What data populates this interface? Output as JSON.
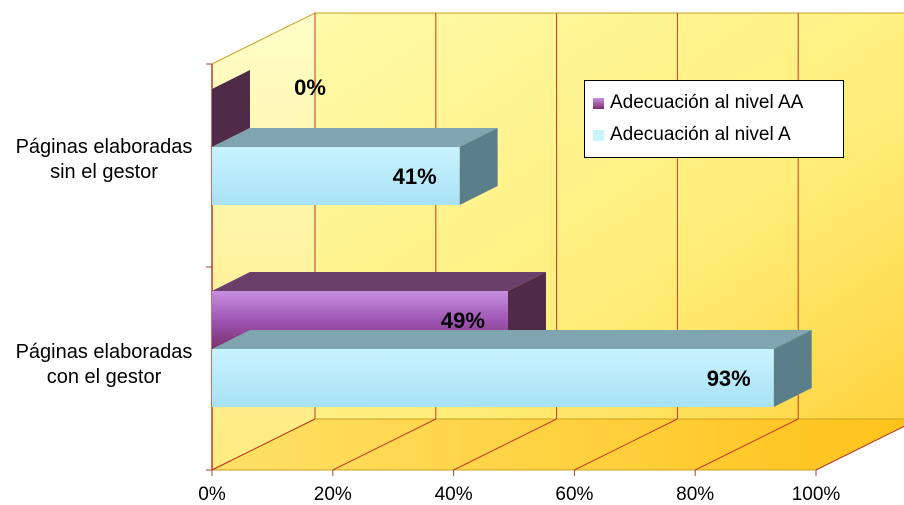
{
  "chart_data": {
    "type": "bar",
    "orientation": "horizontal",
    "three_d": true,
    "categories": [
      "Páginas elaboradas\nsin el gestor",
      "Páginas elaboradas\ncon el gestor"
    ],
    "series": [
      {
        "name": "Adecuación al nivel AA",
        "values": [
          0,
          49
        ],
        "color": "#9b4bb0"
      },
      {
        "name": "Adecuación al nivel A",
        "values": [
          41,
          93
        ],
        "color": "#bfefff"
      }
    ],
    "data_labels": {
      "Adecuación al nivel AA": [
        "0%",
        "49%"
      ],
      "Adecuación al nivel A": [
        "41%",
        "93%"
      ]
    },
    "x_ticks": [
      "0%",
      "20%",
      "40%",
      "60%",
      "80%",
      "100%"
    ],
    "xlim": [
      0,
      100
    ],
    "grid": true,
    "legend_position": "top-right",
    "wall_color": "#fff59a"
  }
}
